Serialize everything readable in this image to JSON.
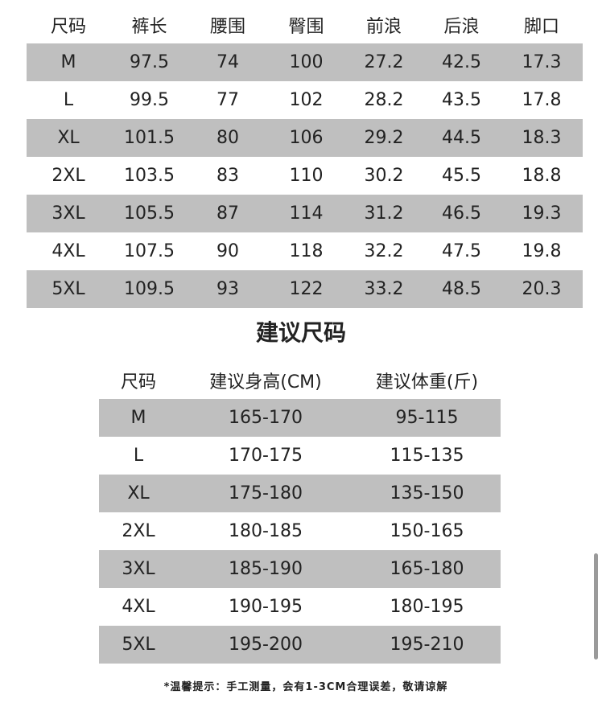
{
  "size_table": {
    "headers": [
      "尺码",
      "裤长",
      "腰围",
      "臀围",
      "前浪",
      "后浪",
      "脚口"
    ],
    "rows": [
      [
        "M",
        "97.5",
        "74",
        "100",
        "27.2",
        "42.5",
        "17.3"
      ],
      [
        "L",
        "99.5",
        "77",
        "102",
        "28.2",
        "43.5",
        "17.8"
      ],
      [
        "XL",
        "101.5",
        "80",
        "106",
        "29.2",
        "44.5",
        "18.3"
      ],
      [
        "2XL",
        "103.5",
        "83",
        "110",
        "30.2",
        "45.5",
        "18.8"
      ],
      [
        "3XL",
        "105.5",
        "87",
        "114",
        "31.2",
        "46.5",
        "19.3"
      ],
      [
        "4XL",
        "107.5",
        "90",
        "118",
        "32.2",
        "47.5",
        "19.8"
      ],
      [
        "5XL",
        "109.5",
        "93",
        "122",
        "33.2",
        "48.5",
        "20.3"
      ]
    ]
  },
  "recommend": {
    "title": "建议尺码",
    "headers": [
      "尺码",
      "建议身高(CM)",
      "建议体重(斤)"
    ],
    "rows": [
      [
        "M",
        "165-170",
        "95-115"
      ],
      [
        "L",
        "170-175",
        "115-135"
      ],
      [
        "XL",
        "175-180",
        "135-150"
      ],
      [
        "2XL",
        "180-185",
        "150-165"
      ],
      [
        "3XL",
        "185-190",
        "165-180"
      ],
      [
        "4XL",
        "190-195",
        "180-195"
      ],
      [
        "5XL",
        "195-200",
        "195-210"
      ]
    ]
  },
  "note": "*温馨提示：手工测量，会有1-3CM合理误差，敬请谅解",
  "colors": {
    "stripe": "#bfbfbf"
  }
}
